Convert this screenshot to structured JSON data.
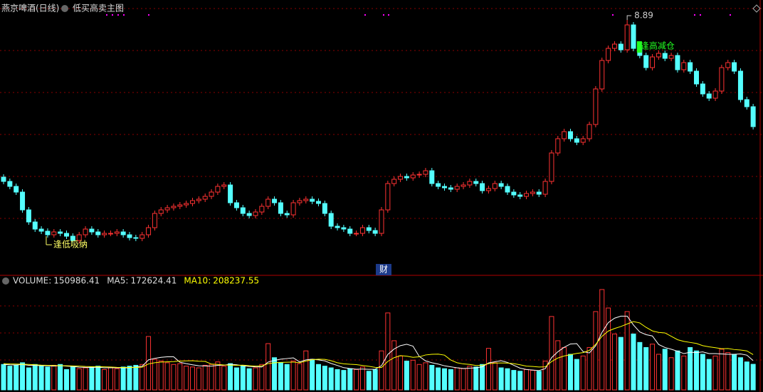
{
  "chart_data": [
    {
      "type": "candlestick",
      "title": "燕京啤酒(日线)",
      "subtitle": "低买高卖主图",
      "up_color": "#ff3232",
      "down_color": "#54ffff",
      "annotations": [
        {
          "text": "8.89"
        },
        {
          "text": "逢低吸纳"
        },
        {
          "text": "逢高减仓"
        },
        {
          "text": "财"
        }
      ],
      "candles": [
        [
          6.68,
          6.72,
          6.58,
          6.62
        ],
        [
          6.62,
          6.66,
          6.51,
          6.55
        ],
        [
          6.55,
          6.59,
          6.43,
          6.47
        ],
        [
          6.47,
          6.51,
          6.18,
          6.22
        ],
        [
          6.22,
          6.26,
          6.01,
          6.05
        ],
        [
          6.05,
          6.09,
          5.91,
          5.95
        ],
        [
          5.95,
          5.99,
          5.88,
          5.92
        ],
        [
          5.92,
          5.96,
          5.83,
          5.87
        ],
        [
          5.87,
          5.95,
          5.83,
          5.91
        ],
        [
          5.91,
          5.95,
          5.85,
          5.89
        ],
        [
          5.89,
          5.93,
          5.81,
          5.85
        ],
        [
          5.85,
          5.89,
          5.75,
          5.79
        ],
        [
          5.79,
          5.91,
          5.75,
          5.87
        ],
        [
          5.87,
          5.99,
          5.83,
          5.95
        ],
        [
          5.95,
          5.99,
          5.87,
          5.91
        ],
        [
          5.91,
          5.95,
          5.83,
          5.87
        ],
        [
          5.87,
          5.93,
          5.83,
          5.89
        ],
        [
          5.89,
          5.93,
          5.85,
          5.89
        ],
        [
          5.89,
          5.95,
          5.85,
          5.91
        ],
        [
          5.91,
          5.95,
          5.83,
          5.87
        ],
        [
          5.87,
          5.91,
          5.79,
          5.83
        ],
        [
          5.83,
          5.87,
          5.78,
          5.82
        ],
        [
          5.82,
          5.91,
          5.78,
          5.87
        ],
        [
          5.87,
          6.01,
          5.83,
          5.97
        ],
        [
          5.97,
          6.21,
          5.93,
          6.17
        ],
        [
          6.17,
          6.26,
          6.13,
          6.22
        ],
        [
          6.22,
          6.29,
          6.18,
          6.25
        ],
        [
          6.25,
          6.31,
          6.21,
          6.27
        ],
        [
          6.27,
          6.33,
          6.23,
          6.29
        ],
        [
          6.29,
          6.35,
          6.25,
          6.31
        ],
        [
          6.31,
          6.39,
          6.27,
          6.35
        ],
        [
          6.35,
          6.41,
          6.31,
          6.37
        ],
        [
          6.37,
          6.45,
          6.33,
          6.41
        ],
        [
          6.41,
          6.51,
          6.37,
          6.47
        ],
        [
          6.47,
          6.59,
          6.43,
          6.55
        ],
        [
          6.55,
          6.61,
          6.51,
          6.57
        ],
        [
          6.57,
          6.61,
          6.28,
          6.32
        ],
        [
          6.32,
          6.36,
          6.21,
          6.25
        ],
        [
          6.25,
          6.29,
          6.13,
          6.17
        ],
        [
          6.17,
          6.21,
          6.1,
          6.14
        ],
        [
          6.14,
          6.23,
          6.1,
          6.19
        ],
        [
          6.19,
          6.31,
          6.15,
          6.27
        ],
        [
          6.27,
          6.41,
          6.23,
          6.37
        ],
        [
          6.37,
          6.41,
          6.28,
          6.32
        ],
        [
          6.32,
          6.36,
          6.13,
          6.17
        ],
        [
          6.17,
          6.21,
          6.11,
          6.15
        ],
        [
          6.15,
          6.36,
          6.11,
          6.32
        ],
        [
          6.32,
          6.39,
          6.28,
          6.35
        ],
        [
          6.35,
          6.41,
          6.31,
          6.37
        ],
        [
          6.37,
          6.41,
          6.3,
          6.34
        ],
        [
          6.34,
          6.38,
          6.27,
          6.31
        ],
        [
          6.31,
          6.35,
          6.13,
          6.17
        ],
        [
          6.17,
          6.21,
          5.95,
          5.99
        ],
        [
          5.99,
          6.03,
          5.93,
          5.97
        ],
        [
          5.97,
          6.01,
          5.91,
          5.95
        ],
        [
          5.95,
          5.99,
          5.85,
          5.89
        ],
        [
          5.89,
          5.93,
          5.85,
          5.89
        ],
        [
          5.89,
          6.01,
          5.85,
          5.97
        ],
        [
          5.97,
          6.01,
          5.89,
          5.93
        ],
        [
          5.93,
          5.97,
          5.85,
          5.89
        ],
        [
          5.89,
          6.26,
          5.85,
          6.22
        ],
        [
          6.22,
          6.63,
          6.18,
          6.59
        ],
        [
          6.59,
          6.69,
          6.55,
          6.65
        ],
        [
          6.65,
          6.73,
          6.61,
          6.69
        ],
        [
          6.69,
          6.73,
          6.63,
          6.67
        ],
        [
          6.67,
          6.75,
          6.63,
          6.71
        ],
        [
          6.71,
          6.76,
          6.67,
          6.72
        ],
        [
          6.72,
          6.81,
          6.68,
          6.77
        ],
        [
          6.77,
          6.81,
          6.55,
          6.59
        ],
        [
          6.59,
          6.63,
          6.51,
          6.55
        ],
        [
          6.55,
          6.59,
          6.49,
          6.53
        ],
        [
          6.53,
          6.57,
          6.47,
          6.51
        ],
        [
          6.51,
          6.59,
          6.47,
          6.55
        ],
        [
          6.55,
          6.61,
          6.51,
          6.57
        ],
        [
          6.57,
          6.66,
          6.53,
          6.62
        ],
        [
          6.62,
          6.66,
          6.55,
          6.59
        ],
        [
          6.59,
          6.63,
          6.45,
          6.49
        ],
        [
          6.49,
          6.56,
          6.45,
          6.52
        ],
        [
          6.52,
          6.63,
          6.48,
          6.59
        ],
        [
          6.59,
          6.63,
          6.51,
          6.55
        ],
        [
          6.55,
          6.59,
          6.43,
          6.47
        ],
        [
          6.47,
          6.51,
          6.39,
          6.43
        ],
        [
          6.43,
          6.47,
          6.37,
          6.41
        ],
        [
          6.41,
          6.49,
          6.37,
          6.45
        ],
        [
          6.45,
          6.51,
          6.41,
          6.47
        ],
        [
          6.47,
          6.51,
          6.4,
          6.44
        ],
        [
          6.44,
          6.66,
          6.4,
          6.62
        ],
        [
          6.62,
          7.06,
          6.58,
          7.02
        ],
        [
          7.02,
          7.26,
          6.98,
          7.22
        ],
        [
          7.22,
          7.36,
          7.18,
          7.32
        ],
        [
          7.32,
          7.36,
          7.18,
          7.22
        ],
        [
          7.22,
          7.26,
          7.13,
          7.17
        ],
        [
          7.17,
          7.26,
          7.13,
          7.22
        ],
        [
          7.22,
          7.46,
          7.18,
          7.42
        ],
        [
          7.42,
          7.96,
          7.38,
          7.92
        ],
        [
          7.92,
          8.36,
          7.88,
          8.32
        ],
        [
          8.32,
          8.53,
          8.28,
          8.49
        ],
        [
          8.49,
          8.59,
          8.45,
          8.55
        ],
        [
          8.55,
          8.59,
          8.43,
          8.47
        ],
        [
          8.47,
          8.89,
          8.43,
          8.82
        ],
        [
          8.82,
          8.86,
          8.45,
          8.49
        ],
        [
          8.49,
          8.53,
          8.35,
          8.39
        ],
        [
          8.39,
          8.43,
          8.18,
          8.22
        ],
        [
          8.22,
          8.41,
          8.18,
          8.37
        ],
        [
          8.37,
          8.46,
          8.33,
          8.42
        ],
        [
          8.42,
          8.46,
          8.31,
          8.35
        ],
        [
          8.35,
          8.43,
          8.31,
          8.39
        ],
        [
          8.39,
          8.43,
          8.15,
          8.19
        ],
        [
          8.19,
          8.33,
          8.15,
          8.29
        ],
        [
          8.29,
          8.33,
          8.13,
          8.17
        ],
        [
          8.17,
          8.21,
          7.95,
          7.99
        ],
        [
          7.99,
          8.03,
          7.81,
          7.85
        ],
        [
          7.85,
          7.89,
          7.75,
          7.79
        ],
        [
          7.79,
          7.93,
          7.75,
          7.89
        ],
        [
          7.89,
          8.26,
          7.85,
          8.22
        ],
        [
          8.22,
          8.33,
          8.18,
          8.29
        ],
        [
          8.29,
          8.33,
          8.13,
          8.17
        ],
        [
          8.17,
          8.21,
          7.73,
          7.77
        ],
        [
          7.77,
          7.81,
          7.63,
          7.67
        ],
        [
          7.67,
          7.71,
          7.35,
          7.39
        ]
      ]
    },
    {
      "type": "volume",
      "series": [
        {
          "name": "VOLUME:",
          "values": [
            150000,
            140000,
            145000,
            160000,
            130000,
            150000,
            140000,
            135000,
            145000,
            150000,
            120000,
            140000,
            125000,
            130000,
            135000,
            140000,
            120000,
            130000,
            125000,
            135000,
            140000,
            145000,
            150000,
            315000,
            180000,
            170000,
            160000,
            150000,
            155000,
            140000,
            135000,
            130000,
            145000,
            150000,
            165000,
            140000,
            155000,
            130000,
            140000,
            125000,
            130000,
            150000,
            273000,
            190000,
            160000,
            150000,
            170000,
            155000,
            230000,
            180000,
            150000,
            140000,
            130000,
            120000,
            115000,
            125000,
            120000,
            135000,
            110000,
            120000,
            230000,
            454000,
            290000,
            200000,
            170000,
            175000,
            150000,
            160000,
            145000,
            130000,
            125000,
            120000,
            130000,
            125000,
            140000,
            135000,
            150000,
            245000,
            160000,
            130000,
            125000,
            115000,
            110000,
            120000,
            115000,
            110000,
            170000,
            433000,
            290000,
            250000,
            210000,
            180000,
            200000,
            250000,
            462000,
            592000,
            483000,
            330000,
            310000,
            462000,
            330000,
            280000,
            250000,
            270000,
            210000,
            240000,
            190000,
            230000,
            200000,
            250000,
            230000,
            210000,
            180000,
            200000,
            240000,
            220000,
            210000,
            190000,
            165000,
            150986.41
          ]
        },
        {
          "name": "MA5:",
          "color": "#ffffff",
          "values": [
            150000,
            148000,
            147000,
            150000,
            145000,
            145000,
            143000,
            143000,
            140000,
            144000,
            140000,
            138000,
            134000,
            133000,
            132000,
            134000,
            130000,
            131000,
            130000,
            130000,
            130000,
            135000,
            139000,
            177000,
            186000,
            192000,
            195000,
            195000,
            163000,
            155000,
            148000,
            142000,
            141000,
            140000,
            145000,
            146000,
            151000,
            148000,
            142000,
            138000,
            136000,
            135000,
            164000,
            174000,
            181000,
            185000,
            189000,
            165000,
            177000,
            181000,
            177000,
            171000,
            156000,
            144000,
            131000,
            126000,
            122000,
            123000,
            121000,
            122000,
            143000,
            209000,
            241000,
            261000,
            269000,
            258000,
            197000,
            171000,
            160000,
            152000,
            142000,
            136000,
            130000,
            126000,
            128000,
            130000,
            136000,
            159000,
            166000,
            172000,
            162000,
            145000,
            128000,
            120000,
            117000,
            114000,
            125000,
            190000,
            225000,
            251000,
            271000,
            273000,
            226000,
            218000,
            260000,
            339000,
            397000,
            423000,
            435000,
            435000,
            383000,
            342000,
            326000,
            318000,
            268000,
            250000,
            240000,
            228000,
            214000,
            222000,
            220000,
            224000,
            214000,
            214000,
            212000,
            210000,
            210000,
            212000,
            205000,
            172624.41
          ]
        },
        {
          "name": "MA10:",
          "color": "#ffff00",
          "values": [
            155000,
            153000,
            152000,
            151000,
            150000,
            148000,
            146000,
            145000,
            144000,
            143000,
            142000,
            141000,
            140000,
            138000,
            137000,
            137000,
            136000,
            135000,
            133000,
            132000,
            132000,
            133000,
            134000,
            153000,
            160000,
            164000,
            166000,
            167000,
            170000,
            171000,
            172000,
            169000,
            168000,
            152000,
            150000,
            147000,
            146000,
            145000,
            146000,
            143000,
            140000,
            141000,
            155000,
            160000,
            162000,
            163000,
            164000,
            160000,
            170000,
            178000,
            181000,
            180000,
            172000,
            160000,
            154000,
            151000,
            149000,
            144000,
            139000,
            133000,
            132000,
            168000,
            190000,
            202000,
            199000,
            192000,
            195000,
            206000,
            210000,
            211000,
            205000,
            176000,
            160000,
            153000,
            150000,
            144000,
            145000,
            155000,
            158000,
            159000,
            158000,
            155000,
            148000,
            140000,
            138000,
            135000,
            136000,
            167000,
            188000,
            200000,
            208000,
            215000,
            220000,
            233000,
            268000,
            316000,
            347000,
            362000,
            374000,
            389000,
            403000,
            395000,
            369000,
            348000,
            339000,
            336000,
            316000,
            296000,
            286000,
            280000,
            274000,
            261000,
            254000,
            249000,
            243000,
            244000,
            238000,
            235000,
            230000,
            208237.55
          ]
        }
      ]
    }
  ]
}
